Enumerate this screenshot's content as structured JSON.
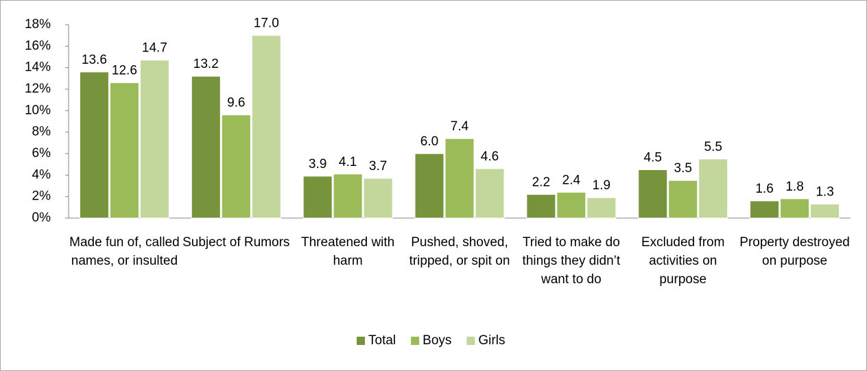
{
  "chart_data": {
    "type": "bar",
    "categories": [
      "Made fun of, called names, or insulted",
      "Subject of Rumors",
      "Threatened with harm",
      "Pushed, shoved, tripped, or spit on",
      "Tried to make do things they didn’t want to do",
      "Excluded from activities on purpose",
      "Property destroyed on purpose"
    ],
    "series": [
      {
        "name": "Total",
        "color": "#77933c",
        "values": [
          13.6,
          13.2,
          3.9,
          6.0,
          2.2,
          4.5,
          1.6
        ],
        "value_labels": [
          "13.6",
          "13.2",
          "3.9",
          "6.0",
          "2.2",
          "4.5",
          "1.6"
        ]
      },
      {
        "name": "Boys",
        "color": "#9bbb59",
        "values": [
          12.6,
          9.6,
          4.1,
          7.4,
          2.4,
          3.5,
          1.8
        ],
        "value_labels": [
          "12.6",
          "9.6",
          "4.1",
          "7.4",
          "2.4",
          "3.5",
          "1.8"
        ]
      },
      {
        "name": "Girls",
        "color": "#c3d69b",
        "values": [
          14.7,
          17.0,
          3.7,
          4.6,
          1.9,
          5.5,
          1.3
        ],
        "value_labels": [
          "14.7",
          "17.0",
          "3.7",
          "4.6",
          "1.9",
          "5.5",
          "1.3"
        ]
      }
    ],
    "ylim": [
      0,
      18
    ],
    "yticks": [
      {
        "value": 0,
        "label": "0%"
      },
      {
        "value": 2,
        "label": "2%"
      },
      {
        "value": 4,
        "label": "4%"
      },
      {
        "value": 6,
        "label": "6%"
      },
      {
        "value": 8,
        "label": "8%"
      },
      {
        "value": 10,
        "label": "10%"
      },
      {
        "value": 12,
        "label": "12%"
      },
      {
        "value": 14,
        "label": "14%"
      },
      {
        "value": 16,
        "label": "16%"
      },
      {
        "value": 18,
        "label": "18%"
      }
    ],
    "grid": false,
    "legend": "bottom"
  }
}
